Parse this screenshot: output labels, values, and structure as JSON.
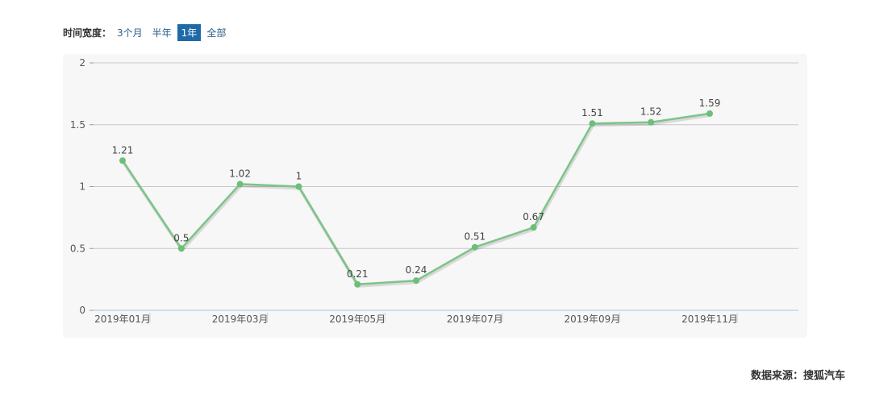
{
  "time_filter": {
    "label": "时间宽度：",
    "options": [
      "3个月",
      "半年",
      "1年",
      "全部"
    ],
    "active": "1年"
  },
  "source": "数据来源：搜狐汽车",
  "colors": {
    "line": "#7cc487",
    "point": "#6cbf79",
    "active_tab": "#1e6aa8"
  },
  "chart_data": {
    "type": "line",
    "x": [
      "2019年01月",
      "2019年02月",
      "2019年03月",
      "2019年04月",
      "2019年05月",
      "2019年06月",
      "2019年07月",
      "2019年08月",
      "2019年09月",
      "2019年10月",
      "2019年11月"
    ],
    "xticks": [
      "2019年01月",
      "2019年03月",
      "2019年05月",
      "2019年07月",
      "2019年09月",
      "2019年11月"
    ],
    "series": [
      {
        "values": [
          1.21,
          0.5,
          1.02,
          1,
          0.21,
          0.24,
          0.51,
          0.67,
          1.51,
          1.52,
          1.59
        ]
      }
    ],
    "data_labels": [
      "1.21",
      "0.5",
      "1.02",
      "1",
      "0.21",
      "0.24",
      "0.51",
      "0.67",
      "1.51",
      "1.52",
      "1.59"
    ],
    "yticks": [
      "0",
      "0.5",
      "1",
      "1.5",
      "2"
    ],
    "ylim": [
      0,
      2
    ],
    "grid": true,
    "legend": "none"
  }
}
